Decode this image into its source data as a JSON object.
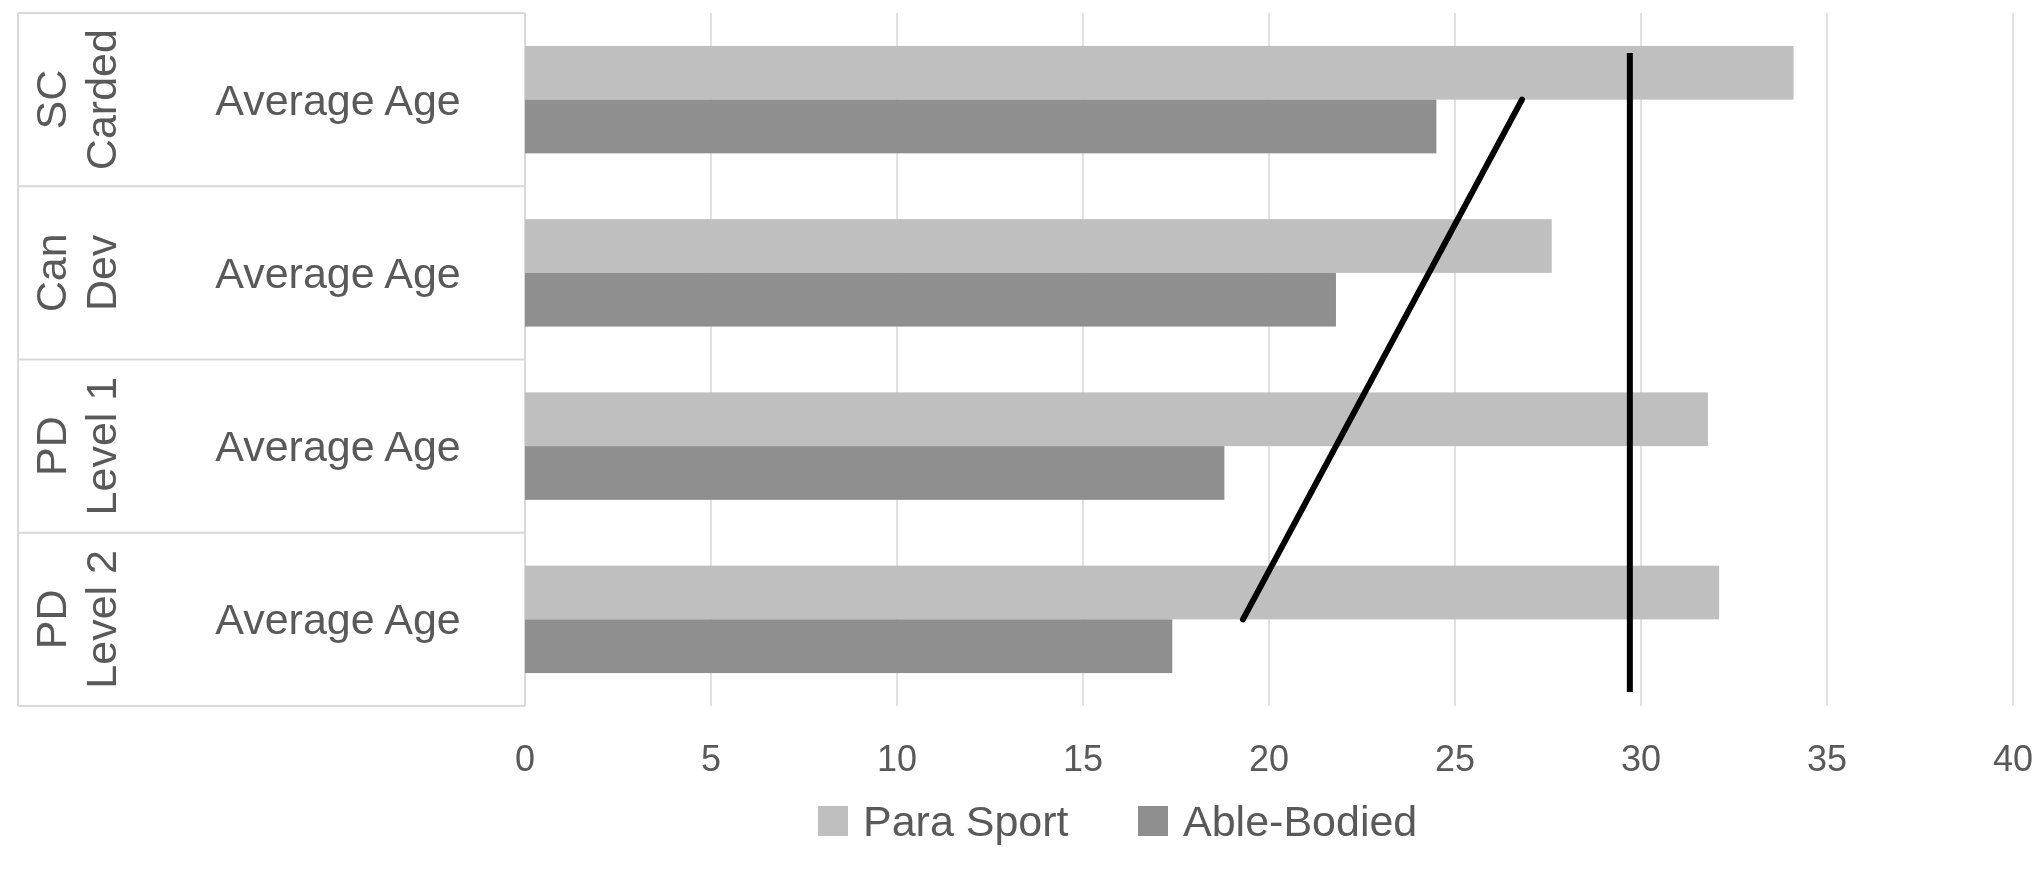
{
  "chart_data": {
    "type": "bar",
    "orientation": "horizontal",
    "categories": [
      "Average Age",
      "Average Age",
      "Average Age",
      "Average Age"
    ],
    "series": [
      {
        "name": "Para Sport",
        "color": "#bfbfbf",
        "values": [
          34.1,
          27.6,
          31.8,
          32.1
        ]
      },
      {
        "name": "Able-Bodied",
        "color": "#8f8f8f",
        "values": [
          24.5,
          21.8,
          18.8,
          17.4
        ]
      },
      {
        "type": "line",
        "color": "#000000",
        "values": [
          26.8,
          24.3,
          21.8,
          19.3
        ]
      }
    ],
    "ref_lines": [
      {
        "axis": "x",
        "value": 29.7,
        "color": "#000000"
      }
    ],
    "annotations": [
      "SC Carded",
      "Can Dev",
      "PD Level 1",
      "PD Level 2"
    ],
    "xlim": [
      0,
      40
    ],
    "xticks": [
      0,
      5,
      10,
      15,
      20,
      25,
      30,
      35,
      40
    ],
    "grid": "x",
    "legend": "bottom"
  }
}
